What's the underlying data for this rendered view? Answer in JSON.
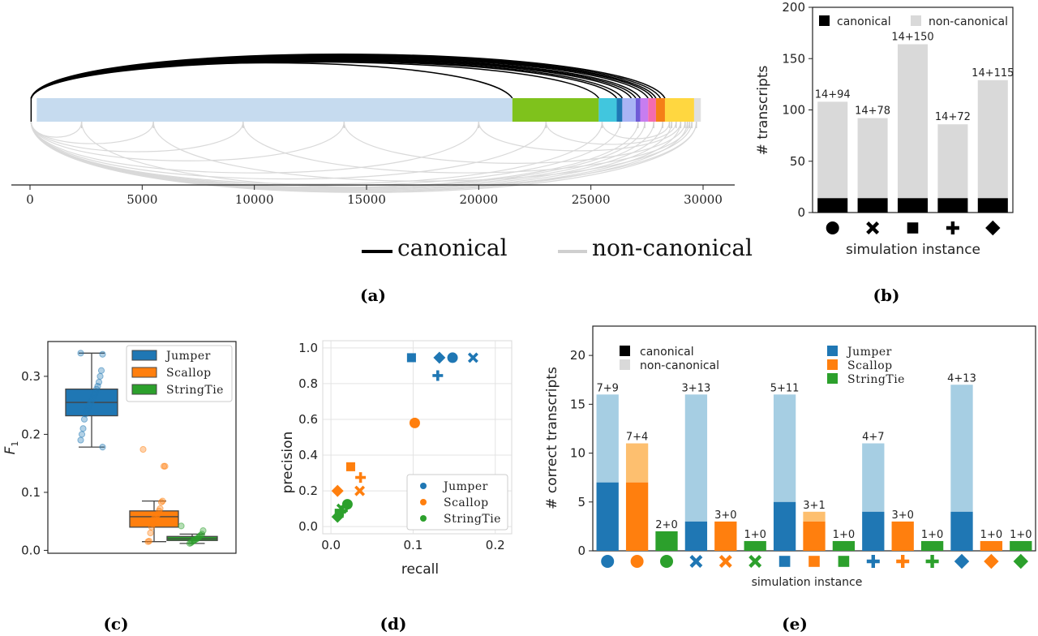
{
  "panels": {
    "a": "(a)",
    "b": "(b)",
    "c": "(c)",
    "d": "(d)",
    "e": "(e)"
  },
  "colors": {
    "jumper": "#1f77b4",
    "scallop": "#ff7f0e",
    "stringtie": "#2ca02c",
    "canonical": "#000000",
    "noncanonical": "#d9d9d9",
    "jumper_light": "#a6cee3",
    "scallop_light": "#fdbf6f"
  },
  "chart_data": [
    {
      "id": "a",
      "type": "arc-diagram",
      "xlim": [
        0,
        30000
      ],
      "xticks": [
        "0",
        "5000",
        "10000",
        "15000",
        "20000",
        "25000",
        "30000"
      ],
      "segments": [
        {
          "start": 300,
          "end": 21500,
          "color": "#c6dbef"
        },
        {
          "start": 21500,
          "end": 25350,
          "color": "#7fc21c"
        },
        {
          "start": 25350,
          "end": 26150,
          "color": "#41c6de"
        },
        {
          "start": 26150,
          "end": 26400,
          "color": "#1f77b4"
        },
        {
          "start": 26400,
          "end": 27000,
          "color": "#a9b4f5"
        },
        {
          "start": 27000,
          "end": 27200,
          "color": "#6f5bd6"
        },
        {
          "start": 27200,
          "end": 27550,
          "color": "#c77df0"
        },
        {
          "start": 27550,
          "end": 27900,
          "color": "#f46bb0"
        },
        {
          "start": 27900,
          "end": 28300,
          "color": "#f57f17"
        },
        {
          "start": 28300,
          "end": 29600,
          "color": "#ffd740"
        },
        {
          "start": 29600,
          "end": 29900,
          "color": "#e0e0e0"
        }
      ],
      "canonical_arcs": [
        [
          50,
          21500
        ],
        [
          50,
          25350
        ],
        [
          50,
          26150
        ],
        [
          50,
          26400
        ],
        [
          50,
          26800
        ],
        [
          50,
          27000
        ],
        [
          50,
          27200
        ],
        [
          50,
          27550
        ],
        [
          50,
          27750
        ],
        [
          50,
          27900
        ],
        [
          50,
          28100
        ],
        [
          50,
          28300
        ]
      ],
      "noncanonical_arcs": [
        [
          50,
          2300
        ],
        [
          50,
          5500
        ],
        [
          50,
          9500
        ],
        [
          50,
          14000
        ],
        [
          50,
          20000
        ],
        [
          50,
          23000
        ],
        [
          50,
          25500
        ],
        [
          50,
          26300
        ],
        [
          50,
          27100
        ],
        [
          50,
          27400
        ],
        [
          50,
          27800
        ],
        [
          50,
          28200
        ],
        [
          50,
          28600
        ],
        [
          50,
          29000
        ],
        [
          50,
          29300
        ],
        [
          50,
          29700
        ],
        [
          2300,
          29700
        ],
        [
          5500,
          29500
        ],
        [
          9500,
          29400
        ],
        [
          14000,
          29200
        ],
        [
          20000,
          29000
        ],
        [
          23000,
          28800
        ],
        [
          25500,
          28500
        ]
      ],
      "legend": [
        "canonical",
        "non-canonical"
      ]
    },
    {
      "id": "b",
      "type": "bar",
      "ylabel": "# transcripts",
      "xlabel": "simulation instance",
      "ylim": [
        0,
        200
      ],
      "yticks": [
        "0",
        "50",
        "100",
        "150",
        "200"
      ],
      "categories": [
        "circle",
        "x",
        "square",
        "plus",
        "diamond"
      ],
      "series": [
        {
          "name": "canonical",
          "values": [
            14,
            14,
            14,
            14,
            14
          ]
        },
        {
          "name": "non-canonical",
          "values": [
            94,
            78,
            150,
            72,
            115
          ]
        }
      ],
      "bar_labels": [
        "14+94",
        "14+78",
        "14+150",
        "14+72",
        "14+115"
      ],
      "legend": [
        "canonical",
        "non-canonical"
      ]
    },
    {
      "id": "c",
      "type": "box",
      "ylabel": "F",
      "ylabel_sub": "1",
      "ylim": [
        -0.005,
        0.36
      ],
      "yticks": [
        "0.0",
        "0.1",
        "0.2",
        "0.3"
      ],
      "legend": [
        "Jumper",
        "Scallop",
        "StringTie"
      ],
      "series": [
        {
          "name": "Jumper",
          "color": "#1f77b4",
          "box": [
            0.178,
            0.232,
            0.255,
            0.278,
            0.34
          ],
          "points": [
            0.34,
            0.338,
            0.31,
            0.3,
            0.29,
            0.283,
            0.278,
            0.272,
            0.268,
            0.262,
            0.258,
            0.255,
            0.25,
            0.245,
            0.24,
            0.235,
            0.226,
            0.21,
            0.2,
            0.19,
            0.178
          ]
        },
        {
          "name": "Scallop",
          "color": "#ff7f0e",
          "box": [
            0.015,
            0.04,
            0.058,
            0.068,
            0.085
          ],
          "points": [
            0.174,
            0.145,
            0.145,
            0.085,
            0.083,
            0.072,
            0.068,
            0.062,
            0.06,
            0.058,
            0.055,
            0.045,
            0.04,
            0.03,
            0.016,
            0.015
          ]
        },
        {
          "name": "StringTie",
          "color": "#2ca02c",
          "box": [
            0.012,
            0.017,
            0.02,
            0.024,
            0.028
          ],
          "points": [
            0.042,
            0.034,
            0.028,
            0.026,
            0.024,
            0.022,
            0.02,
            0.019,
            0.018,
            0.016,
            0.015,
            0.013,
            0.012
          ]
        }
      ]
    },
    {
      "id": "d",
      "type": "scatter",
      "xlabel": "recall",
      "ylabel": "precision",
      "xlim": [
        -0.01,
        0.22
      ],
      "ylim": [
        -0.04,
        1.04
      ],
      "xticks": [
        "0.0",
        "0.1",
        "0.2"
      ],
      "yticks": [
        "0.0",
        "0.2",
        "0.4",
        "0.6",
        "0.8",
        "1.0"
      ],
      "legend": [
        "Jumper",
        "Scallop",
        "StringTie"
      ],
      "series": [
        {
          "name": "Jumper",
          "color": "#1f77b4",
          "points": [
            {
              "x": 0.148,
              "y": 0.945,
              "m": "circle"
            },
            {
              "x": 0.173,
              "y": 0.945,
              "m": "x"
            },
            {
              "x": 0.098,
              "y": 0.945,
              "m": "square"
            },
            {
              "x": 0.13,
              "y": 0.845,
              "m": "plus"
            },
            {
              "x": 0.132,
              "y": 0.945,
              "m": "diamond"
            }
          ]
        },
        {
          "name": "Scallop",
          "color": "#ff7f0e",
          "points": [
            {
              "x": 0.102,
              "y": 0.58,
              "m": "circle"
            },
            {
              "x": 0.035,
              "y": 0.2,
              "m": "x"
            },
            {
              "x": 0.024,
              "y": 0.335,
              "m": "square"
            },
            {
              "x": 0.036,
              "y": 0.275,
              "m": "plus"
            },
            {
              "x": 0.008,
              "y": 0.2,
              "m": "diamond"
            }
          ]
        },
        {
          "name": "StringTie",
          "color": "#2ca02c",
          "points": [
            {
              "x": 0.02,
              "y": 0.125,
              "m": "circle"
            },
            {
              "x": 0.013,
              "y": 0.1,
              "m": "x"
            },
            {
              "x": 0.01,
              "y": 0.075,
              "m": "square"
            },
            {
              "x": 0.014,
              "y": 0.09,
              "m": "plus"
            },
            {
              "x": 0.008,
              "y": 0.055,
              "m": "diamond"
            }
          ]
        }
      ]
    },
    {
      "id": "e",
      "type": "bar",
      "ylabel": "# correct transcripts",
      "xlabel": "simulation instance",
      "ylim": [
        0,
        23
      ],
      "yticks": [
        "0",
        "5",
        "10",
        "15",
        "20"
      ],
      "legend_left": [
        "canonical",
        "non-canonical"
      ],
      "legend_right": [
        "Jumper",
        "Scallop",
        "StringTie"
      ],
      "bars": [
        {
          "tool": "Jumper",
          "canonical": 7,
          "noncanonical": 9,
          "label": "7+9",
          "marker": "circle"
        },
        {
          "tool": "Scallop",
          "canonical": 7,
          "noncanonical": 4,
          "label": "7+4",
          "marker": "circle"
        },
        {
          "tool": "StringTie",
          "canonical": 2,
          "noncanonical": 0,
          "label": "2+0",
          "marker": "circle"
        },
        {
          "tool": "Jumper",
          "canonical": 3,
          "noncanonical": 13,
          "label": "3+13",
          "marker": "x"
        },
        {
          "tool": "Scallop",
          "canonical": 3,
          "noncanonical": 0,
          "label": "3+0",
          "marker": "x"
        },
        {
          "tool": "StringTie",
          "canonical": 1,
          "noncanonical": 0,
          "label": "1+0",
          "marker": "x"
        },
        {
          "tool": "Jumper",
          "canonical": 5,
          "noncanonical": 11,
          "label": "5+11",
          "marker": "square"
        },
        {
          "tool": "Scallop",
          "canonical": 3,
          "noncanonical": 1,
          "label": "3+1",
          "marker": "square"
        },
        {
          "tool": "StringTie",
          "canonical": 1,
          "noncanonical": 0,
          "label": "1+0",
          "marker": "square"
        },
        {
          "tool": "Jumper",
          "canonical": 4,
          "noncanonical": 7,
          "label": "4+7",
          "marker": "plus"
        },
        {
          "tool": "Scallop",
          "canonical": 3,
          "noncanonical": 0,
          "label": "3+0",
          "marker": "plus"
        },
        {
          "tool": "StringTie",
          "canonical": 1,
          "noncanonical": 0,
          "label": "1+0",
          "marker": "plus"
        },
        {
          "tool": "Jumper",
          "canonical": 4,
          "noncanonical": 13,
          "label": "4+13",
          "marker": "diamond"
        },
        {
          "tool": "Scallop",
          "canonical": 1,
          "noncanonical": 0,
          "label": "1+0",
          "marker": "diamond"
        },
        {
          "tool": "StringTie",
          "canonical": 1,
          "noncanonical": 0,
          "label": "1+0",
          "marker": "diamond"
        }
      ]
    }
  ]
}
